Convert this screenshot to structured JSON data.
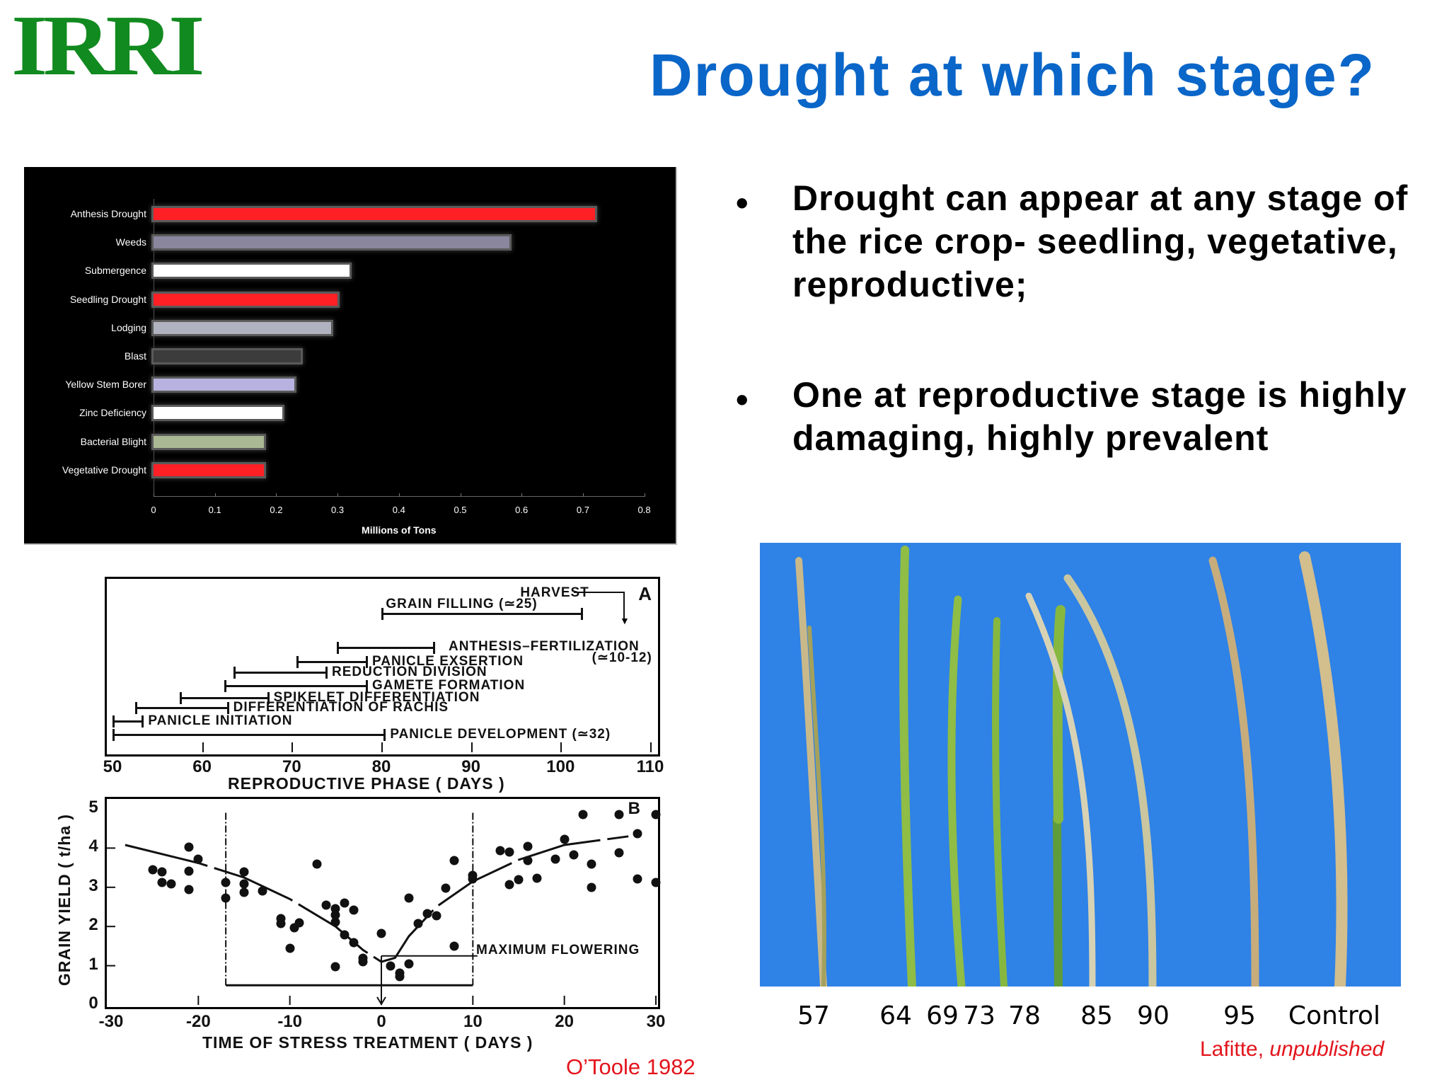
{
  "logo": {
    "text": "IRRI"
  },
  "title": "Drought at which stage?",
  "bullets": [
    {
      "marker": "•",
      "text": "Drought can appear at any stage of the rice crop- seedling, vegetative, reproductive;"
    },
    {
      "marker": "•",
      "text": "One at reproductive stage is highly damaging, highly prevalent"
    }
  ],
  "chart_data": [
    {
      "type": "bar",
      "orientation": "horizontal",
      "title": "",
      "xlabel": "Millions of Tons",
      "ylabel": "",
      "xlim": [
        0,
        0.8
      ],
      "xticks": [
        "0",
        "0.1",
        "0.2",
        "0.3",
        "0.4",
        "0.5",
        "0.6",
        "0.7",
        "0.8"
      ],
      "grid": false,
      "legend": null,
      "background": "#000000",
      "categories": [
        "Anthesis Drought",
        "Weeds",
        "Submergence",
        "Seedling Drought",
        "Lodging",
        "Blast",
        "Yellow Stem Borer",
        "Zinc Deficiency",
        "Bacterial Blight",
        "Vegetative Drought"
      ],
      "values": [
        0.72,
        0.58,
        0.32,
        0.3,
        0.29,
        0.24,
        0.23,
        0.21,
        0.18,
        0.18
      ],
      "colors": [
        "#ff2026",
        "#8a869e",
        "#ffffff",
        "#ff2026",
        "#b0b2bf",
        "#3c3c3c",
        "#b7b2e0",
        "#ffffff",
        "#aab893",
        "#ff2026"
      ]
    },
    {
      "type": "table",
      "panel": "A",
      "title": "",
      "xlabel": "REPRODUCTIVE PHASE ( DAYS )",
      "xlim": [
        50,
        110
      ],
      "xticks": [
        "50",
        "60",
        "70",
        "80",
        "90",
        "100",
        "110"
      ],
      "stages": [
        {
          "label": "HARVEST",
          "start": 107,
          "end": 107,
          "arrow": true
        },
        {
          "label": "GRAIN FILLING (≃25)",
          "start": 80,
          "end": 102.5
        },
        {
          "label": "ANTHESIS–FERTILIZATION (≃10-12)",
          "start": 75,
          "end": 86
        },
        {
          "label": "PANICLE EXSERTION",
          "start": 70.5,
          "end": 78.5
        },
        {
          "label": "REDUCTION DIVISION",
          "start": 63.5,
          "end": 74
        },
        {
          "label": "GAMETE FORMATION",
          "start": 62.5,
          "end": 78.5
        },
        {
          "label": "SPIKELET DIFFERENTIATION",
          "start": 57.5,
          "end": 67.5
        },
        {
          "label": "DIFFERENTIATION OF RACHIS",
          "start": 52.5,
          "end": 63
        },
        {
          "label": "PANICLE INITIATION",
          "start": 50,
          "end": 53.5
        },
        {
          "label": "PANICLE DEVELOPMENT (≃32)",
          "start": 50,
          "end": 80.5
        }
      ]
    },
    {
      "type": "scatter",
      "panel": "B",
      "xlabel": "TIME OF STRESS TREATMENT ( DAYS )",
      "ylabel": "GRAIN YIELD ( t/ha )",
      "xlim": [
        -30,
        30
      ],
      "ylim": [
        0,
        5
      ],
      "xticks": [
        "-30",
        "-20",
        "-10",
        "0",
        "10",
        "20",
        "30"
      ],
      "yticks": [
        "0",
        "1",
        "2",
        "3",
        "4",
        "5"
      ],
      "annotation": "MAXIMUM FLOWERING",
      "annotation_x": 0,
      "window": [
        -17,
        10
      ],
      "points": [
        [
          -25,
          3.45
        ],
        [
          -24,
          3.4
        ],
        [
          -24,
          3.12
        ],
        [
          -23,
          3.08
        ],
        [
          -21,
          4.02
        ],
        [
          -21,
          3.42
        ],
        [
          -21,
          2.95
        ],
        [
          -20,
          3.72
        ],
        [
          -17,
          3.12
        ],
        [
          -17,
          2.72
        ],
        [
          -15,
          3.4
        ],
        [
          -15,
          3.08
        ],
        [
          -15,
          2.87
        ],
        [
          -13,
          2.9
        ],
        [
          -11,
          2.2
        ],
        [
          -11,
          2.08
        ],
        [
          -10,
          1.45
        ],
        [
          -9.5,
          1.97
        ],
        [
          -9,
          2.1
        ],
        [
          -7,
          3.6
        ],
        [
          -6,
          2.55
        ],
        [
          -5,
          2.45
        ],
        [
          -5,
          2.3
        ],
        [
          -5,
          2.12
        ],
        [
          -5,
          0.98
        ],
        [
          -4,
          2.6
        ],
        [
          -4,
          1.78
        ],
        [
          -3,
          2.42
        ],
        [
          -3,
          1.58
        ],
        [
          -2,
          1.2
        ],
        [
          -2,
          1.1
        ],
        [
          0,
          1.83
        ],
        [
          1,
          1.0
        ],
        [
          2,
          0.82
        ],
        [
          2,
          0.72
        ],
        [
          3,
          2.72
        ],
        [
          3,
          1.05
        ],
        [
          4,
          2.07
        ],
        [
          5,
          2.32
        ],
        [
          6,
          2.27
        ],
        [
          7,
          2.98
        ],
        [
          8,
          3.68
        ],
        [
          8,
          1.5
        ],
        [
          10,
          3.3
        ],
        [
          10,
          3.22
        ],
        [
          13,
          3.93
        ],
        [
          14,
          3.9
        ],
        [
          14,
          3.07
        ],
        [
          15,
          3.2
        ],
        [
          16,
          4.05
        ],
        [
          16,
          3.68
        ],
        [
          17,
          3.23
        ],
        [
          19,
          3.72
        ],
        [
          20,
          4.22
        ],
        [
          21,
          3.82
        ],
        [
          22,
          4.85
        ],
        [
          23,
          3.6
        ],
        [
          23,
          3.0
        ],
        [
          26,
          4.85
        ],
        [
          26,
          3.88
        ],
        [
          28,
          4.37
        ],
        [
          28,
          3.22
        ],
        [
          30,
          4.85
        ],
        [
          30,
          3.12
        ]
      ],
      "curve": [
        [
          -28,
          4.08
        ],
        [
          -20,
          3.62
        ],
        [
          -15,
          3.25
        ],
        [
          -10,
          2.7
        ],
        [
          -5,
          2.0
        ],
        [
          -2,
          1.4
        ],
        [
          0,
          1.1
        ],
        [
          1.5,
          1.2
        ],
        [
          3,
          1.75
        ],
        [
          6,
          2.5
        ],
        [
          10,
          3.15
        ],
        [
          15,
          3.7
        ],
        [
          20,
          4.08
        ],
        [
          27,
          4.3
        ]
      ]
    }
  ],
  "figA": {
    "panel_letter": "A",
    "axis_title": "REPRODUCTIVE PHASE ( DAYS )"
  },
  "figB": {
    "panel_letter": "B",
    "axis_title": "TIME OF STRESS TREATMENT ( DAYS )",
    "y_title": "GRAIN YIELD ( t/ha )",
    "annotation": "MAXIMUM FLOWERING"
  },
  "credits": {
    "left": "O’Toole 1982",
    "right_plain": "Lafitte, ",
    "right_italic": "unpublished"
  },
  "photo": {
    "description": "rice panicles on blue background",
    "background": "#2f82e6",
    "labels": [
      "57",
      "64",
      "69",
      "73",
      "78",
      "85",
      "90",
      "95",
      "Control"
    ]
  }
}
